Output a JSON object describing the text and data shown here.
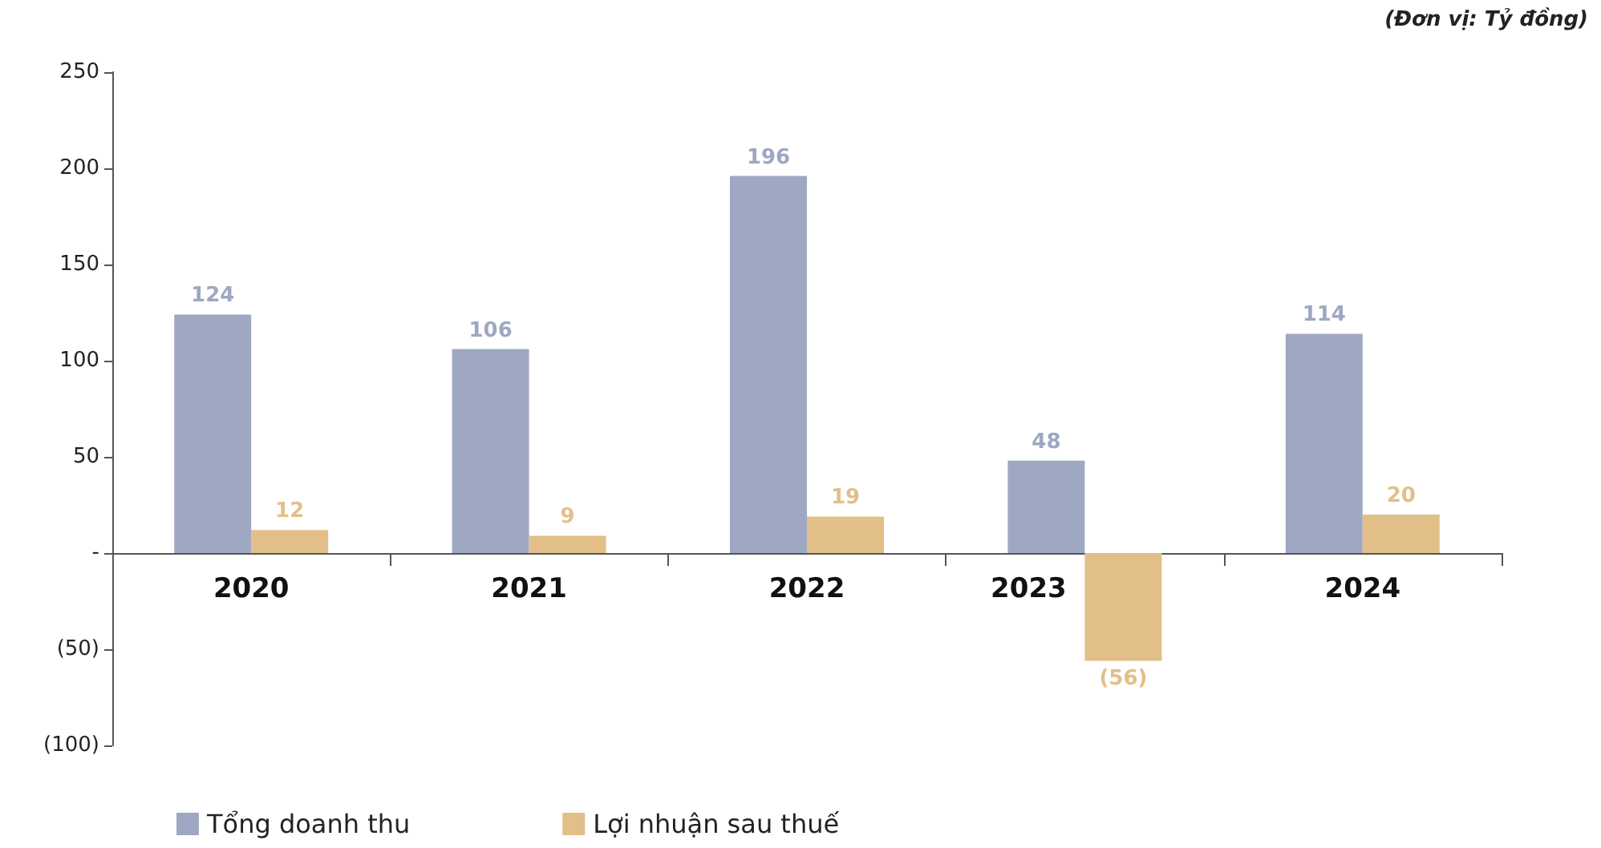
{
  "chart_data": {
    "type": "bar",
    "categories": [
      "2020",
      "2021",
      "2022",
      "2023",
      "2024"
    ],
    "series": [
      {
        "name": "Tổng doanh thu",
        "color": "#9ea8c2",
        "values": [
          124,
          106,
          196,
          48,
          114
        ],
        "value_labels": [
          "124",
          "106",
          "196",
          "48",
          "114"
        ]
      },
      {
        "name": "Lợi nhuận sau thuế",
        "color": "#e2bf89",
        "values": [
          12,
          9,
          19,
          -56,
          20
        ],
        "value_labels": [
          "12",
          "9",
          "19",
          "(56)",
          "20"
        ]
      }
    ],
    "ylim": [
      -100,
      250
    ],
    "yticks": [
      {
        "value": -100,
        "label": "(100)"
      },
      {
        "value": -50,
        "label": "(50)"
      },
      {
        "value": 0,
        "label": "-"
      },
      50,
      100,
      150,
      200,
      250
    ],
    "annotations": [
      "(Đơn vị: Tỷ đồng)"
    ],
    "legend": "bottom left"
  }
}
